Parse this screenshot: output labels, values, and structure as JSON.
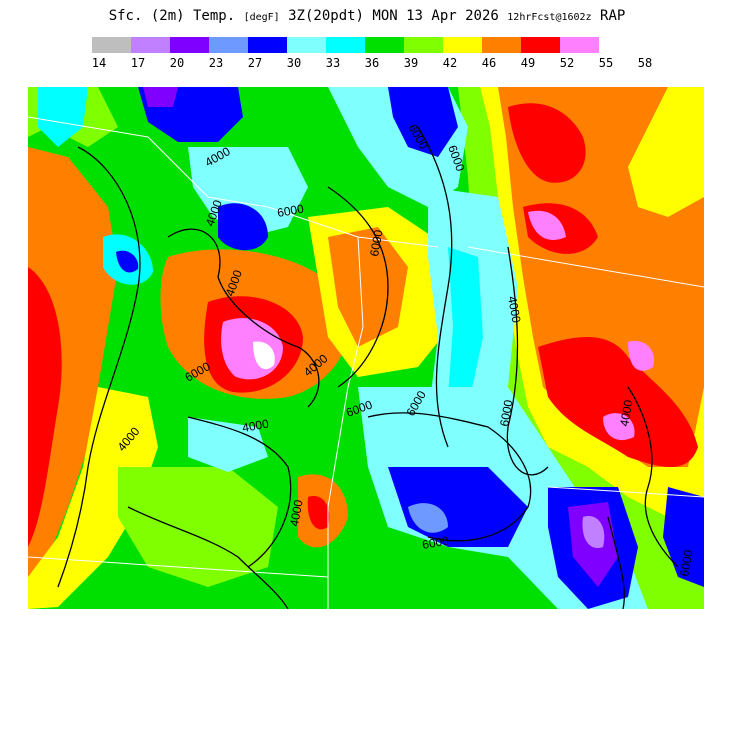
{
  "header": {
    "title_main": "Sfc. (2m) Temp.",
    "title_units": "[degF]",
    "title_time": "3Z(20pdt) MON 13 Apr 2026",
    "title_run": "12hrFcst@1602z",
    "title_model": "RAP"
  },
  "legend": {
    "colors": [
      "#bebebe",
      "#c080ff",
      "#8000ff",
      "#6e9aff",
      "#0000ff",
      "#80ffff",
      "#00ffff",
      "#00e000",
      "#80ff00",
      "#ffff00",
      "#ff8000",
      "#ff0000",
      "#ff80ff"
    ],
    "ticks": [
      "14",
      "17",
      "20",
      "23",
      "27",
      "30",
      "33",
      "36",
      "39",
      "42",
      "46",
      "49",
      "52",
      "55",
      "58"
    ]
  },
  "map": {
    "contour_labels": [
      "4000",
      "6000",
      "6000",
      "6000",
      "4000",
      "4000",
      "4000",
      "6000",
      "6000",
      "4000",
      "6000",
      "4000",
      "4000",
      "6000",
      "6000",
      "6000",
      "6000",
      "4000",
      "4000"
    ]
  }
}
